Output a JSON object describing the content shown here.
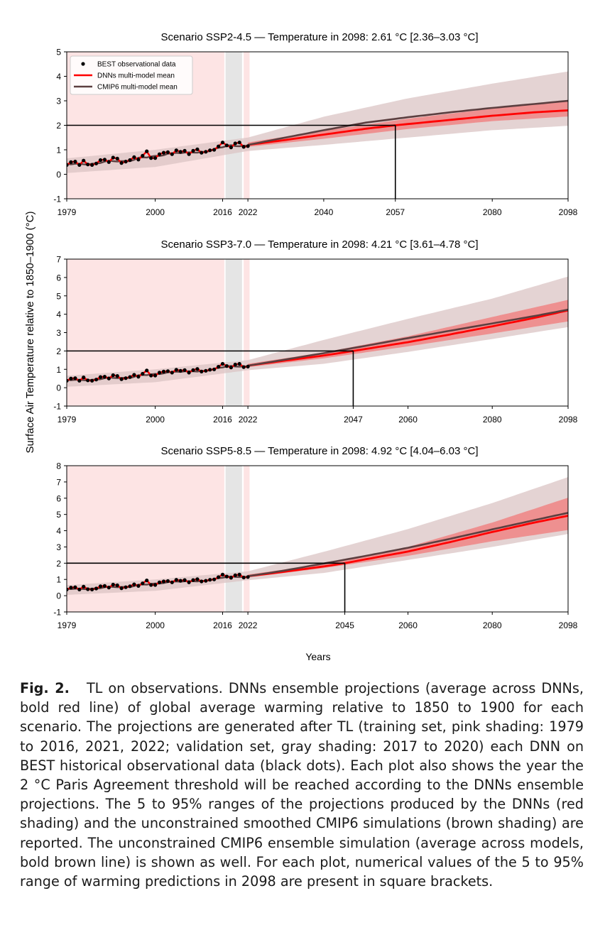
{
  "figure": {
    "shared_ylabel": "Surface Air Temperature relative to 1850–1900 (°C)",
    "shared_xlabel": "Years",
    "legend": [
      {
        "label": "BEST observational data",
        "marker": "dot",
        "color": "#000000"
      },
      {
        "label": "DNNs multi-model mean",
        "marker": "line",
        "color": "#ff0000"
      },
      {
        "label": "CMIP6 multi-model mean",
        "marker": "line",
        "color": "#5c3f40"
      }
    ],
    "colors": {
      "dnn_mean": "#ff0000",
      "dnn_band": "#f08080",
      "cmip_mean": "#5c3f40",
      "cmip_band": "#dbc4c4",
      "training_shading": "#fde4e4",
      "validation_shading": "#e5e5e5",
      "observations": "#000000"
    }
  },
  "chart_data": [
    {
      "type": "line",
      "title": "Scenario SSP2-4.5 — Temperature in 2098: 2.61 °C [2.36–3.03 °C]",
      "xlabel": "Years",
      "ylabel": "Surface Air Temperature relative to 1850–1900 (°C)",
      "xlim": [
        1979,
        2098
      ],
      "ylim": [
        -1,
        5
      ],
      "x_ticks": [
        1979,
        2000,
        2016,
        2022,
        2040,
        2057,
        2080,
        2098
      ],
      "y_ticks": [
        -1,
        0,
        1,
        2,
        3,
        4,
        5
      ],
      "threshold": {
        "temperature": 2,
        "year": 2057
      },
      "training_periods": [
        [
          1979,
          2016
        ],
        [
          2021,
          2022
        ]
      ],
      "validation_period": [
        2017,
        2020
      ],
      "legend_position": "top-left",
      "series": [
        {
          "name": "DNNs multi-model mean",
          "x": [
            2022,
            2030,
            2040,
            2050,
            2057,
            2070,
            2080,
            2090,
            2098
          ],
          "y": [
            1.2,
            1.38,
            1.62,
            1.86,
            2.0,
            2.22,
            2.39,
            2.53,
            2.61
          ]
        },
        {
          "name": "CMIP6 multi-model mean",
          "x": [
            2022,
            2030,
            2040,
            2050,
            2060,
            2070,
            2080,
            2090,
            2098
          ],
          "y": [
            1.2,
            1.47,
            1.8,
            2.11,
            2.33,
            2.53,
            2.71,
            2.87,
            3.0
          ]
        }
      ],
      "dnn_range": {
        "x": [
          2022,
          2040,
          2060,
          2080,
          2098
        ],
        "low": [
          1.12,
          1.45,
          1.85,
          2.17,
          2.36
        ],
        "high": [
          1.3,
          1.78,
          2.27,
          2.68,
          3.03
        ]
      },
      "cmip6_range": {
        "x": [
          1979,
          2000,
          2022,
          2040,
          2060,
          2080,
          2098
        ],
        "low": [
          0.05,
          0.3,
          0.95,
          1.2,
          1.5,
          1.8,
          1.98
        ],
        "high": [
          0.65,
          1.0,
          1.5,
          2.35,
          3.1,
          3.7,
          4.2
        ]
      }
    },
    {
      "type": "line",
      "title": "Scenario SSP3-7.0 — Temperature in 2098: 4.21 °C [3.61–4.78 °C]",
      "xlabel": "Years",
      "ylabel": "Surface Air Temperature relative to 1850–1900 (°C)",
      "xlim": [
        1979,
        2098
      ],
      "ylim": [
        -1,
        7
      ],
      "x_ticks": [
        1979,
        2000,
        2016,
        2022,
        2047,
        2060,
        2080,
        2098
      ],
      "y_ticks": [
        -1,
        0,
        1,
        2,
        3,
        4,
        5,
        6,
        7
      ],
      "threshold": {
        "temperature": 2,
        "year": 2047
      },
      "training_periods": [
        [
          1979,
          2016
        ],
        [
          2021,
          2022
        ]
      ],
      "validation_period": [
        2017,
        2020
      ],
      "series": [
        {
          "name": "DNNs multi-model mean",
          "x": [
            2022,
            2030,
            2040,
            2047,
            2060,
            2070,
            2080,
            2090,
            2098
          ],
          "y": [
            1.2,
            1.45,
            1.75,
            2.0,
            2.48,
            2.9,
            3.34,
            3.8,
            4.21
          ]
        },
        {
          "name": "CMIP6 multi-model mean",
          "x": [
            2022,
            2030,
            2040,
            2050,
            2060,
            2070,
            2080,
            2090,
            2098
          ],
          "y": [
            1.2,
            1.5,
            1.88,
            2.28,
            2.7,
            3.1,
            3.5,
            3.9,
            4.25
          ]
        }
      ],
      "dnn_range": {
        "x": [
          2022,
          2040,
          2060,
          2080,
          2098
        ],
        "low": [
          1.12,
          1.6,
          2.25,
          2.95,
          3.61
        ],
        "high": [
          1.3,
          1.92,
          2.8,
          3.85,
          4.78
        ]
      },
      "cmip6_range": {
        "x": [
          1979,
          2000,
          2022,
          2040,
          2060,
          2080,
          2098
        ],
        "low": [
          0.05,
          0.3,
          0.95,
          1.3,
          1.95,
          2.65,
          3.3
        ],
        "high": [
          0.65,
          1.0,
          1.5,
          2.6,
          3.75,
          4.85,
          6.05
        ]
      }
    },
    {
      "type": "line",
      "title": "Scenario SSP5-8.5 — Temperature in 2098: 4.92 °C [4.04–6.03 °C]",
      "xlabel": "Years",
      "ylabel": "Surface Air Temperature relative to 1850–1900 (°C)",
      "xlim": [
        1979,
        2098
      ],
      "ylim": [
        -1,
        8
      ],
      "x_ticks": [
        1979,
        2000,
        2016,
        2022,
        2045,
        2060,
        2080,
        2098
      ],
      "y_ticks": [
        -1,
        0,
        1,
        2,
        3,
        4,
        5,
        6,
        7,
        8
      ],
      "threshold": {
        "temperature": 2,
        "year": 2045
      },
      "training_periods": [
        [
          1979,
          2016
        ],
        [
          2021,
          2022
        ]
      ],
      "validation_period": [
        2017,
        2020
      ],
      "series": [
        {
          "name": "DNNs multi-model mean",
          "x": [
            2022,
            2030,
            2040,
            2045,
            2060,
            2070,
            2080,
            2090,
            2098
          ],
          "y": [
            1.2,
            1.45,
            1.8,
            2.0,
            2.72,
            3.3,
            3.92,
            4.5,
            4.92
          ]
        },
        {
          "name": "CMIP6 multi-model mean",
          "x": [
            2022,
            2030,
            2040,
            2050,
            2060,
            2070,
            2080,
            2090,
            2098
          ],
          "y": [
            1.2,
            1.52,
            1.98,
            2.45,
            2.95,
            3.5,
            4.08,
            4.65,
            5.1
          ]
        }
      ],
      "dnn_range": {
        "x": [
          2022,
          2040,
          2060,
          2080,
          2098
        ],
        "low": [
          1.12,
          1.7,
          2.45,
          3.35,
          4.04
        ],
        "high": [
          1.3,
          1.95,
          3.0,
          4.5,
          6.03
        ]
      },
      "cmip6_range": {
        "x": [
          1979,
          2000,
          2022,
          2040,
          2060,
          2080,
          2098
        ],
        "low": [
          0.05,
          0.3,
          0.95,
          1.4,
          2.2,
          3.0,
          3.8
        ],
        "high": [
          0.65,
          1.0,
          1.5,
          2.7,
          4.1,
          5.7,
          7.3
        ]
      }
    }
  ],
  "observations": {
    "x": [
      1979,
      1980,
      1981,
      1982,
      1983,
      1984,
      1985,
      1986,
      1987,
      1988,
      1989,
      1990,
      1991,
      1992,
      1993,
      1994,
      1995,
      1996,
      1997,
      1998,
      1999,
      2000,
      2001,
      2002,
      2003,
      2004,
      2005,
      2006,
      2007,
      2008,
      2009,
      2010,
      2011,
      2012,
      2013,
      2014,
      2015,
      2016,
      2017,
      2018,
      2019,
      2020,
      2021,
      2022
    ],
    "y": [
      0.38,
      0.5,
      0.52,
      0.38,
      0.56,
      0.4,
      0.38,
      0.44,
      0.58,
      0.6,
      0.5,
      0.68,
      0.64,
      0.46,
      0.52,
      0.58,
      0.7,
      0.6,
      0.76,
      0.94,
      0.66,
      0.66,
      0.82,
      0.88,
      0.9,
      0.82,
      0.98,
      0.92,
      0.96,
      0.82,
      0.96,
      1.02,
      0.88,
      0.92,
      0.98,
      1.0,
      1.14,
      1.3,
      1.18,
      1.1,
      1.26,
      1.3,
      1.12,
      1.15
    ]
  },
  "caption": {
    "label": "Fig. 2.",
    "text": "TL on observations. DNNs ensemble projections (average across DNNs, bold red line) of global average warming relative to 1850 to 1900 for each scenario. The projections are generated after TL (training set, pink shading: 1979 to 2016, 2021, 2022; validation set, gray shading: 2017 to 2020) each DNN on BEST historical observational data (black dots). Each plot also shows the year the 2 °C Paris Agreement threshold will be reached according to the DNNs ensemble projections. The 5 to 95% ranges of the projections produced by the DNNs (red shading) and the unconstrained smoothed CMIP6 simulations (brown shading) are reported. The unconstrained CMIP6 ensemble simulation (average across models, bold brown line) is shown as well. For each plot, numerical values of the 5 to 95% range of warming predictions in 2098 are present in square brackets."
  }
}
